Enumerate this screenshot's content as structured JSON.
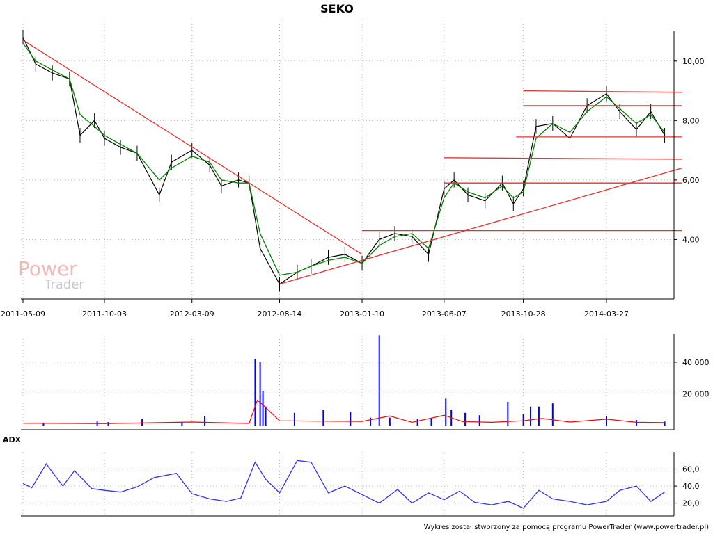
{
  "title": "SEKO",
  "watermark": {
    "line1": "Power",
    "line2": "Trader"
  },
  "footer": "Wykres został stworzony za pomocą programu PowerTrader (www.powertrader.pl)",
  "colors": {
    "price": "#000000",
    "moving_average": "#008000",
    "trendlines": "#e8302f",
    "volume_bars": "#0000ff",
    "volume_average": "#ff0000",
    "adx": "#3333ee"
  },
  "chart_data": [
    {
      "panel": "price",
      "type": "line",
      "title": "SEKO",
      "x_ticks": [
        "2011-05-09",
        "2011-10-03",
        "2012-03-09",
        "2012-08-14",
        "2013-01-10",
        "2013-06-07",
        "2013-10-28",
        "2014-03-27"
      ],
      "y_ticks": [
        "10,00",
        "8,00",
        "6,00",
        "4,00"
      ],
      "ylim": [
        2.0,
        11.0
      ],
      "grid": true,
      "series": [
        {
          "kind": "close",
          "x": [
            "2011-05-09",
            "2011-06-01",
            "2011-07-01",
            "2011-08-01",
            "2011-08-20",
            "2011-09-15",
            "2011-10-03",
            "2011-11-01",
            "2011-12-01",
            "2012-01-10",
            "2012-02-01",
            "2012-03-09",
            "2012-04-10",
            "2012-05-01",
            "2012-06-01",
            "2012-06-20",
            "2012-07-10",
            "2012-08-14",
            "2012-09-15",
            "2012-10-10",
            "2012-11-10",
            "2012-12-10",
            "2013-01-10",
            "2013-02-10",
            "2013-03-10",
            "2013-04-10",
            "2013-05-10",
            "2013-06-07",
            "2013-06-25",
            "2013-07-20",
            "2013-08-20",
            "2013-09-20",
            "2013-10-10",
            "2013-10-28",
            "2013-11-20",
            "2013-12-20",
            "2014-01-20",
            "2014-02-20",
            "2014-03-27",
            "2014-04-20",
            "2014-05-20",
            "2014-06-15",
            "2014-07-10"
          ],
          "y": [
            10.8,
            9.9,
            9.6,
            9.4,
            7.5,
            8.0,
            7.4,
            7.1,
            6.9,
            5.5,
            6.6,
            7.0,
            6.5,
            5.8,
            6.0,
            5.9,
            3.7,
            2.5,
            2.9,
            3.1,
            3.4,
            3.5,
            3.2,
            4.0,
            4.2,
            4.1,
            3.5,
            5.7,
            6.0,
            5.5,
            5.3,
            5.9,
            5.2,
            5.7,
            7.8,
            7.9,
            7.4,
            8.5,
            8.9,
            8.3,
            7.7,
            8.3,
            7.5
          ]
        },
        {
          "kind": "moving_average",
          "x": [
            "2011-05-09",
            "2011-06-01",
            "2011-07-01",
            "2011-08-01",
            "2011-08-20",
            "2011-09-15",
            "2011-10-03",
            "2011-11-01",
            "2011-12-01",
            "2012-01-10",
            "2012-02-01",
            "2012-03-09",
            "2012-04-10",
            "2012-05-01",
            "2012-06-01",
            "2012-06-20",
            "2012-07-10",
            "2012-08-14",
            "2012-09-15",
            "2012-10-10",
            "2012-11-10",
            "2012-12-10",
            "2013-01-10",
            "2013-02-10",
            "2013-03-10",
            "2013-04-10",
            "2013-05-10",
            "2013-06-07",
            "2013-06-25",
            "2013-07-20",
            "2013-08-20",
            "2013-09-20",
            "2013-10-10",
            "2013-10-28",
            "2013-11-20",
            "2013-12-20",
            "2014-01-20",
            "2014-02-20",
            "2014-03-27",
            "2014-04-20",
            "2014-05-20",
            "2014-06-15",
            "2014-07-10"
          ],
          "y": [
            10.6,
            10.0,
            9.7,
            9.4,
            8.2,
            7.8,
            7.5,
            7.2,
            6.9,
            6.0,
            6.4,
            6.8,
            6.6,
            6.0,
            5.9,
            5.9,
            4.2,
            2.8,
            2.9,
            3.1,
            3.3,
            3.4,
            3.2,
            3.8,
            4.1,
            4.2,
            3.7,
            5.4,
            5.9,
            5.6,
            5.4,
            5.8,
            5.4,
            5.6,
            7.4,
            7.9,
            7.6,
            8.3,
            8.8,
            8.4,
            7.9,
            8.2,
            7.6
          ]
        }
      ],
      "trendlines": [
        {
          "kind": "down",
          "from": [
            "2011-05-09",
            10.7
          ],
          "to": [
            "2013-01-10",
            3.5
          ]
        },
        {
          "kind": "up",
          "from": [
            "2012-08-14",
            2.5
          ],
          "to": [
            "2014-08-10",
            6.4
          ]
        },
        {
          "kind": "horizontal",
          "from": [
            "2013-01-10",
            4.3
          ],
          "to": [
            "2014-08-10",
            4.3
          ]
        },
        {
          "kind": "horizontal",
          "from": [
            "2013-06-07",
            5.9
          ],
          "to": [
            "2014-08-10",
            5.9
          ]
        },
        {
          "kind": "horizontal",
          "from": [
            "2013-06-07",
            6.75
          ],
          "to": [
            "2014-08-10",
            6.7
          ]
        },
        {
          "kind": "horizontal",
          "from": [
            "2013-10-15",
            7.45
          ],
          "to": [
            "2014-08-10",
            7.45
          ]
        },
        {
          "kind": "horizontal",
          "from": [
            "2013-10-28",
            8.5
          ],
          "to": [
            "2014-08-10",
            8.5
          ]
        },
        {
          "kind": "horizontal",
          "from": [
            "2013-10-28",
            9.0
          ],
          "to": [
            "2014-08-10",
            8.95
          ]
        }
      ]
    },
    {
      "panel": "volume",
      "type": "bar",
      "y_ticks": [
        "40 000",
        "20 000"
      ],
      "ylim": [
        0,
        58000
      ],
      "series": [
        {
          "kind": "volume",
          "x": [
            "2011-06-15",
            "2011-09-20",
            "2011-10-10",
            "2011-12-10",
            "2012-02-20",
            "2012-04-01",
            "2012-07-01",
            "2012-07-10",
            "2012-07-15",
            "2012-07-20",
            "2012-09-10",
            "2012-11-01",
            "2012-12-20",
            "2013-01-25",
            "2013-02-10",
            "2013-03-01",
            "2013-04-20",
            "2013-05-15",
            "2013-06-10",
            "2013-06-20",
            "2013-07-15",
            "2013-08-10",
            "2013-09-30",
            "2013-10-28",
            "2013-11-10",
            "2013-11-25",
            "2013-12-20",
            "2014-03-27",
            "2014-05-20",
            "2014-07-10"
          ],
          "y": [
            1800,
            2500,
            2200,
            4200,
            2300,
            6000,
            42000,
            40000,
            22000,
            12000,
            8000,
            10000,
            8500,
            5000,
            57000,
            5000,
            4000,
            4500,
            17000,
            10000,
            8000,
            6500,
            15000,
            7500,
            12000,
            12000,
            14000,
            6000,
            3500,
            2500
          ]
        },
        {
          "kind": "volume_average",
          "x": [
            "2011-05-09",
            "2011-10-03",
            "2012-03-09",
            "2012-06-20",
            "2012-07-05",
            "2012-07-15",
            "2012-08-14",
            "2012-10-10",
            "2013-01-10",
            "2013-03-01",
            "2013-04-10",
            "2013-06-07",
            "2013-07-10",
            "2013-09-01",
            "2013-10-28",
            "2013-12-01",
            "2014-01-20",
            "2014-03-27",
            "2014-05-20",
            "2014-07-10"
          ],
          "y": [
            1500,
            1200,
            2200,
            1300,
            16000,
            13000,
            3000,
            2800,
            2600,
            6000,
            2000,
            6500,
            2500,
            2000,
            3000,
            4500,
            2200,
            4000,
            2000,
            1800
          ]
        }
      ]
    },
    {
      "panel": "ADX",
      "type": "line",
      "label": "ADX",
      "y_ticks": [
        "60,0",
        "40,0",
        "20,0"
      ],
      "ylim": [
        5,
        80
      ],
      "series": [
        {
          "kind": "adx",
          "x": [
            "2011-05-09",
            "2011-05-25",
            "2011-06-20",
            "2011-07-20",
            "2011-08-10",
            "2011-09-10",
            "2011-10-03",
            "2011-11-01",
            "2011-12-01",
            "2012-01-01",
            "2012-02-10",
            "2012-03-09",
            "2012-04-10",
            "2012-05-10",
            "2012-06-05",
            "2012-07-01",
            "2012-07-20",
            "2012-08-14",
            "2012-09-15",
            "2012-10-10",
            "2012-11-10",
            "2012-12-10",
            "2013-01-10",
            "2013-02-10",
            "2013-03-15",
            "2013-04-10",
            "2013-05-10",
            "2013-06-07",
            "2013-07-05",
            "2013-08-01",
            "2013-09-01",
            "2013-10-01",
            "2013-10-28",
            "2013-11-25",
            "2013-12-20",
            "2014-01-20",
            "2014-02-20",
            "2014-03-27",
            "2014-04-20",
            "2014-05-20",
            "2014-06-15",
            "2014-07-10"
          ],
          "y": [
            43,
            38,
            66,
            40,
            58,
            37,
            35,
            33,
            39,
            50,
            55,
            31,
            25,
            22,
            26,
            68,
            48,
            32,
            70,
            68,
            32,
            40,
            30,
            20,
            36,
            20,
            32,
            24,
            34,
            21,
            18,
            22,
            14,
            35,
            25,
            22,
            18,
            22,
            35,
            40,
            22,
            33
          ]
        }
      ]
    }
  ]
}
